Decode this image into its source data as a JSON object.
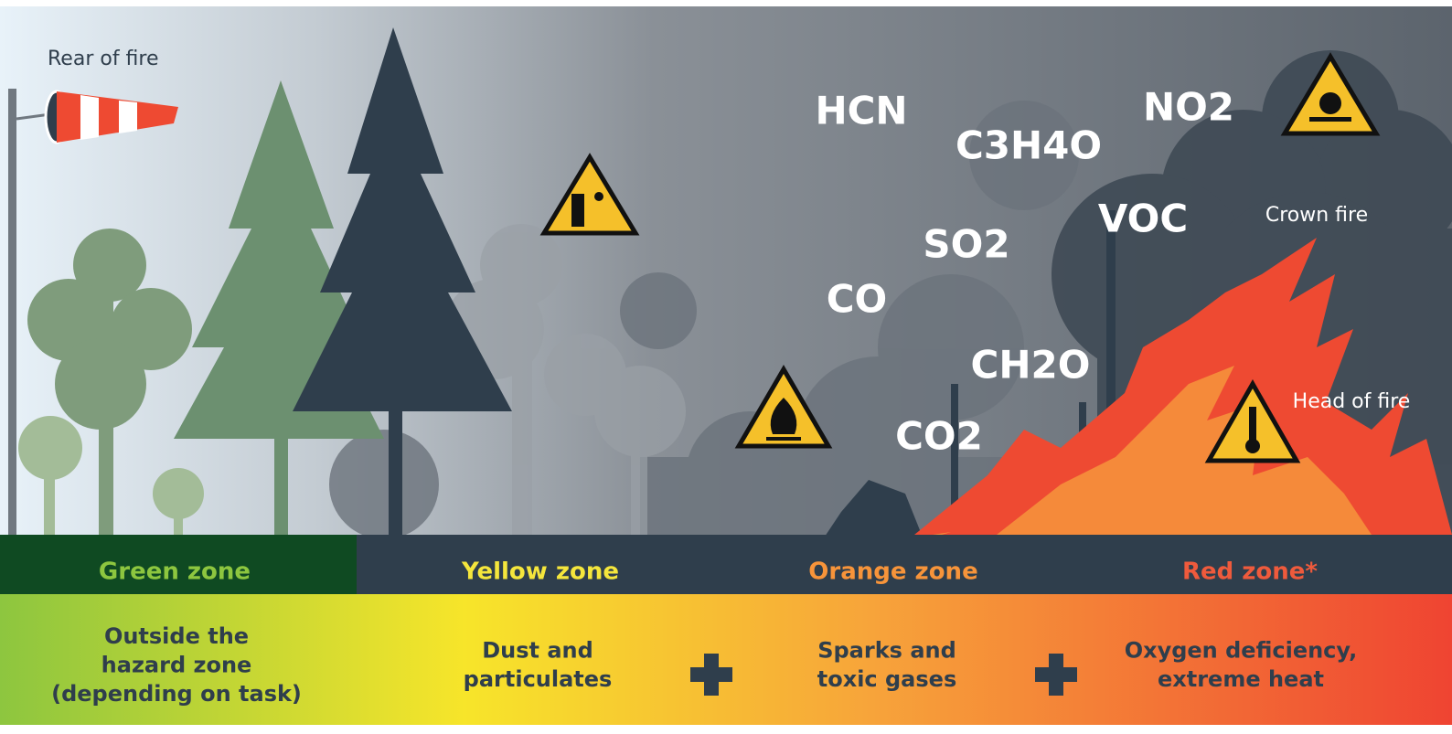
{
  "labels": {
    "rear": "Rear of fire",
    "crown": "Crown fire",
    "head": "Head of fire"
  },
  "gases": [
    {
      "label": "HCN"
    },
    {
      "label": "C3H4O"
    },
    {
      "label": "NO2"
    },
    {
      "label": "VOC"
    },
    {
      "label": "SO2"
    },
    {
      "label": "CO"
    },
    {
      "label": "CH2O"
    },
    {
      "label": "CO2"
    }
  ],
  "zones": [
    {
      "name": "Green zone",
      "description": [
        "Outside the",
        "hazard zone",
        "(depending on task)"
      ]
    },
    {
      "name": "Yellow zone",
      "description": [
        "Dust and",
        "particulates"
      ]
    },
    {
      "name": "Orange zone",
      "description": [
        "Sparks and",
        "toxic gases"
      ]
    },
    {
      "name": "Red zone*",
      "description": [
        "Oxygen deficiency,",
        "extreme heat"
      ]
    }
  ]
}
